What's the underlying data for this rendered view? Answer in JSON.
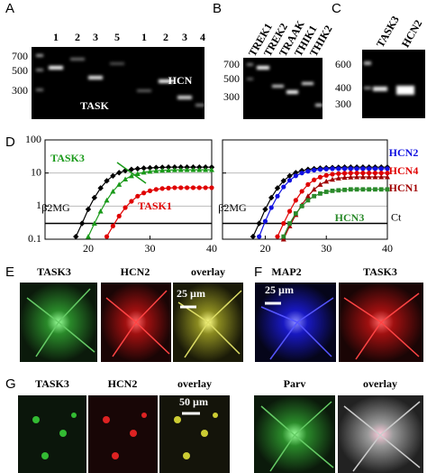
{
  "panels": {
    "A": {
      "label": "A",
      "lanes": [
        "1",
        "2",
        "3",
        "5",
        "1",
        "2",
        "3",
        "4"
      ],
      "sizes": [
        "700",
        "500",
        "300"
      ],
      "texts": [
        "HCN",
        "TASK"
      ]
    },
    "B": {
      "label": "B",
      "lanes": [
        "TREK1",
        "TREK2",
        "TRAAK",
        "THIK1",
        "THIK2"
      ],
      "sizes": [
        "700",
        "500",
        "300"
      ]
    },
    "C": {
      "label": "C",
      "lanes": [
        "TASK3",
        "HCN2"
      ],
      "sizes": [
        "600",
        "400",
        "300"
      ]
    },
    "D": {
      "label": "D"
    },
    "E": {
      "label": "E",
      "captions": [
        "TASK3",
        "HCN2",
        "overlay"
      ],
      "scale": "25 µm"
    },
    "F": {
      "label": "F",
      "captions": [
        "MAP2",
        "TASK3"
      ],
      "scale": "25 µm"
    },
    "G": {
      "label": "G",
      "captions": [
        "TASK3",
        "HCN2",
        "overlay",
        "Parv",
        "overlay"
      ],
      "scale": "50 µm"
    }
  },
  "chart_data": [
    {
      "type": "line",
      "log_y": true,
      "grid": true,
      "show_ytick_labels": true,
      "x": [
        17,
        18,
        19,
        20,
        21,
        22,
        23,
        24,
        25,
        26,
        27,
        28,
        29,
        30,
        31,
        32,
        33,
        34,
        35,
        36,
        37,
        38,
        39,
        40
      ],
      "xlim": [
        13,
        40
      ],
      "xticks": [
        20,
        30,
        40
      ],
      "ylim": [
        0.1,
        100
      ],
      "yticks": [
        0.1,
        1,
        10,
        100
      ],
      "threshold": 0.3,
      "series": [
        {
          "name": "β2MG",
          "color": "#000000",
          "marker": "diamond",
          "values": [
            null,
            0.12,
            0.3,
            0.8,
            1.8,
            3.5,
            5.8,
            8.2,
            10.2,
            11.8,
            12.8,
            13.5,
            14,
            14.3,
            14.6,
            14.8,
            15,
            15,
            15,
            15,
            15,
            15,
            15,
            15
          ]
        },
        {
          "name": "TASK3",
          "color": "#1a9a1a",
          "marker": "triangle",
          "values": [
            null,
            null,
            null,
            0.12,
            0.3,
            0.7,
            1.5,
            2.8,
            4.5,
            6.5,
            8.2,
            9.5,
            10.5,
            11.2,
            11.7,
            12,
            12.2,
            12.4,
            12.5,
            12.5,
            12.5,
            12.5,
            12.5,
            12.5
          ]
        },
        {
          "name": "TASK1",
          "color": "#e00000",
          "marker": "circle",
          "values": [
            null,
            null,
            null,
            null,
            null,
            null,
            0.12,
            0.25,
            0.5,
            0.9,
            1.4,
            2,
            2.5,
            2.9,
            3.2,
            3.4,
            3.5,
            3.6,
            3.6,
            3.6,
            3.6,
            3.6,
            3.6,
            3.6
          ]
        }
      ]
    },
    {
      "type": "line",
      "log_y": true,
      "grid": true,
      "show_ytick_labels": false,
      "x": [
        17,
        18,
        19,
        20,
        21,
        22,
        23,
        24,
        25,
        26,
        27,
        28,
        29,
        30,
        31,
        32,
        33,
        34,
        35,
        36,
        37,
        38,
        39,
        40
      ],
      "xlim": [
        13,
        40
      ],
      "xticks": [
        20,
        30,
        40
      ],
      "ylim": [
        0.1,
        100
      ],
      "yticks": [
        0.1,
        1,
        10,
        100
      ],
      "threshold": 0.3,
      "threshold_label": "Ct",
      "series": [
        {
          "name": "β2MG",
          "color": "#000000",
          "marker": "diamond",
          "values": [
            null,
            0.12,
            0.3,
            0.8,
            1.8,
            3.5,
            5.8,
            8.2,
            10.2,
            11.8,
            12.8,
            13.5,
            14,
            14.3,
            14.6,
            14.8,
            15,
            15,
            15,
            15,
            15,
            15,
            15,
            15
          ]
        },
        {
          "name": "HCN2",
          "color": "#1010e0",
          "marker": "circle",
          "values": [
            null,
            null,
            0.12,
            0.35,
            0.9,
            2,
            3.8,
            6,
            8.2,
            10,
            11.3,
            12.2,
            12.8,
            13.2,
            13.5,
            13.5,
            13.5,
            13.5,
            13.5,
            13.5,
            13.5,
            13.5,
            13.5,
            13.5
          ]
        },
        {
          "name": "HCN4",
          "color": "#e00000",
          "marker": "circle",
          "values": [
            null,
            null,
            null,
            null,
            null,
            0.12,
            0.3,
            0.7,
            1.5,
            2.8,
            4.5,
            6.2,
            7.5,
            8.5,
            9.2,
            9.6,
            9.8,
            10,
            10,
            10,
            10,
            10,
            10,
            10
          ]
        },
        {
          "name": "HCN1",
          "color": "#a00000",
          "marker": "triangle",
          "values": [
            null,
            null,
            null,
            null,
            null,
            null,
            0.1,
            0.25,
            0.55,
            1.1,
            2,
            3.2,
            4.5,
            5.6,
            6.4,
            7,
            7.3,
            7.5,
            7.6,
            7.6,
            7.6,
            7.6,
            7.6,
            7.6
          ]
        },
        {
          "name": "HCN3",
          "color": "#2a8a2a",
          "marker": "square",
          "values": [
            null,
            null,
            null,
            null,
            null,
            null,
            0.12,
            0.3,
            0.6,
            1,
            1.5,
            2,
            2.4,
            2.7,
            2.9,
            3,
            3.1,
            3.2,
            3.2,
            3.2,
            3.2,
            3.2,
            3.2,
            3.2
          ]
        }
      ]
    }
  ]
}
